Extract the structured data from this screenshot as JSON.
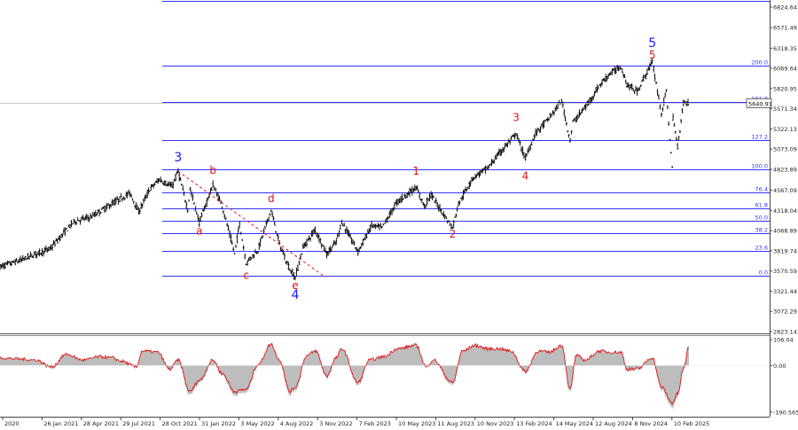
{
  "colors": {
    "fib_line": "#3333ff",
    "price": "#000000",
    "wave_primary": "#1a1aff",
    "wave_minor": "#e01515",
    "osc_hist": "#bdbdbd",
    "osc_line": "#e01515",
    "trendline": "#e01515",
    "axis_text": "#222222",
    "price_tag_bg": "#ffffff"
  },
  "current_price_label": "5640.91",
  "chart_data": [
    {
      "type": "line",
      "title": "",
      "price_axis_ticks": [
        "6824.64",
        "6571.49",
        "6318.35",
        "6069.64",
        "5820.95",
        "5571.34",
        "5322.13",
        "5073.09",
        "4823.89",
        "4567.09",
        "4318.04",
        "4068.89",
        "3819.74",
        "3570.59",
        "3321.44",
        "3072.29",
        "2823.14"
      ],
      "date_ticks": [
        "2020",
        "26 Jan 2021",
        "28 Apr 2021",
        "29 Jul 2021",
        "28 Oct 2021",
        "31 Jan 2022",
        "3 May 2022",
        "4 Aug 2022",
        "3 Nov 2022",
        "7 Feb 2023",
        "10 May 2023",
        "11 Aug 2023",
        "10 Nov 2023",
        "13 Feb 2024",
        "14 May 2024",
        "12 Aug 2024",
        "8 Nov 2024",
        "10 Feb 2025"
      ],
      "fib_levels": [
        {
          "label": "200.0",
          "price": 6100
        },
        {
          "label": "161.8",
          "price": 5660
        },
        {
          "label": "127.2",
          "price": 5190
        },
        {
          "label": "100.0",
          "price": 4820
        },
        {
          "label": "76.4",
          "price": 4540
        },
        {
          "label": "61.8",
          "price": 4340
        },
        {
          "label": "50.0",
          "price": 4190
        },
        {
          "label": "38.2",
          "price": 4040
        },
        {
          "label": "23.6",
          "price": 3820
        },
        {
          "label": "0.0",
          "price": 3510
        }
      ],
      "series": [
        {
          "values": [
            [
              "2020-11-01",
              3620
            ],
            [
              "2020-12-20",
              3700
            ],
            [
              "2021-01-26",
              3780
            ],
            [
              "2021-03-01",
              3840
            ],
            [
              "2021-04-28",
              4180
            ],
            [
              "2021-06-10",
              4240
            ],
            [
              "2021-07-29",
              4400
            ],
            [
              "2021-09-10",
              4530
            ],
            [
              "2021-10-01",
              4300
            ],
            [
              "2021-10-28",
              4580
            ],
            [
              "2021-11-20",
              4700
            ],
            [
              "2021-12-20",
              4610
            ],
            [
              "2022-01-04",
              4800
            ],
            [
              "2022-01-27",
              4330
            ],
            [
              "2022-02-02",
              4580
            ],
            [
              "2022-02-24",
              4170
            ],
            [
              "2022-03-29",
              4630
            ],
            [
              "2022-04-20",
              4380
            ],
            [
              "2022-05-20",
              3780
            ],
            [
              "2022-06-01",
              4150
            ],
            [
              "2022-06-17",
              3670
            ],
            [
              "2022-07-15",
              3830
            ],
            [
              "2022-08-16",
              4320
            ],
            [
              "2022-09-05",
              3900
            ],
            [
              "2022-09-30",
              3590
            ],
            [
              "2022-10-13",
              3490
            ],
            [
              "2022-11-01",
              3860
            ],
            [
              "2022-11-30",
              4080
            ],
            [
              "2022-12-28",
              3780
            ],
            [
              "2023-01-20",
              3930
            ],
            [
              "2023-02-02",
              4180
            ],
            [
              "2023-03-13",
              3810
            ],
            [
              "2023-04-15",
              4130
            ],
            [
              "2023-05-10",
              4100
            ],
            [
              "2023-06-15",
              4420
            ],
            [
              "2023-07-31",
              4600
            ],
            [
              "2023-08-20",
              4370
            ],
            [
              "2023-09-05",
              4510
            ],
            [
              "2023-10-27",
              4100
            ],
            [
              "2023-11-10",
              4400
            ],
            [
              "2023-12-15",
              4720
            ],
            [
              "2024-01-20",
              4840
            ],
            [
              "2024-02-13",
              5000
            ],
            [
              "2024-03-28",
              5260
            ],
            [
              "2024-04-19",
              4960
            ],
            [
              "2024-05-14",
              5270
            ],
            [
              "2024-06-15",
              5450
            ],
            [
              "2024-07-16",
              5670
            ],
            [
              "2024-08-05",
              5180
            ],
            [
              "2024-08-12",
              5400
            ],
            [
              "2024-09-15",
              5620
            ],
            [
              "2024-10-15",
              5860
            ],
            [
              "2024-11-08",
              6000
            ],
            [
              "2024-12-06",
              6090
            ],
            [
              "2024-12-20",
              5870
            ],
            [
              "2025-01-13",
              5780
            ],
            [
              "2025-02-19",
              6150
            ],
            [
              "2025-03-13",
              5520
            ],
            [
              "2025-03-25",
              5780
            ],
            [
              "2025-04-08",
              4830
            ],
            [
              "2025-04-10",
              5460
            ],
            [
              "2025-04-21",
              5100
            ],
            [
              "2025-05-05",
              5650
            ],
            [
              "2025-05-19",
              5640
            ]
          ]
        }
      ],
      "wave_labels": [
        {
          "text": "3",
          "date": "2022-01-04",
          "price": 4920,
          "style": "primary"
        },
        {
          "text": "4",
          "date": "2022-10-13",
          "price": 3230,
          "style": "primary"
        },
        {
          "text": "5",
          "date": "2025-02-19",
          "price": 6330,
          "style": "primary"
        },
        {
          "text": "a",
          "date": "2022-02-24",
          "price": 4020,
          "style": "minor"
        },
        {
          "text": "b",
          "date": "2022-03-29",
          "price": 4770,
          "style": "minor"
        },
        {
          "text": "c",
          "date": "2022-06-17",
          "price": 3475,
          "style": "minor"
        },
        {
          "text": "d",
          "date": "2022-08-16",
          "price": 4420,
          "style": "minor"
        },
        {
          "text": "e",
          "date": "2022-10-13",
          "price": 3350,
          "style": "minor"
        },
        {
          "text": "1",
          "date": "2023-07-31",
          "price": 4760,
          "style": "minor"
        },
        {
          "text": "2",
          "date": "2023-10-27",
          "price": 3980,
          "style": "minor"
        },
        {
          "text": "3",
          "date": "2024-03-28",
          "price": 5420,
          "style": "minor"
        },
        {
          "text": "4",
          "date": "2024-04-19",
          "price": 4700,
          "style": "minor"
        },
        {
          "text": "5",
          "date": "2025-02-19",
          "price": 6190,
          "style": "minor"
        }
      ],
      "trendline": {
        "from": {
          "date": "2022-01-04",
          "price": 4800
        },
        "to": {
          "date": "2022-12-20",
          "price": 3510
        }
      },
      "oscillator": {
        "ticks": [
          "106.04",
          "0.00",
          "-190.565"
        ],
        "ylim": [
          -195,
          110
        ],
        "values": [
          [
            "2020-11-01",
            30
          ],
          [
            "2020-12-15",
            25
          ],
          [
            "2021-01-26",
            20
          ],
          [
            "2021-03-05",
            -10
          ],
          [
            "2021-04-10",
            45
          ],
          [
            "2021-05-20",
            20
          ],
          [
            "2021-07-01",
            35
          ],
          [
            "2021-07-29",
            30
          ],
          [
            "2021-08-20",
            15
          ],
          [
            "2021-09-25",
            -10
          ],
          [
            "2021-10-10",
            60
          ],
          [
            "2021-11-15",
            55
          ],
          [
            "2021-12-15",
            -20
          ],
          [
            "2022-01-04",
            20
          ],
          [
            "2022-02-01",
            -120
          ],
          [
            "2022-02-24",
            -70
          ],
          [
            "2022-03-29",
            20
          ],
          [
            "2022-04-20",
            -40
          ],
          [
            "2022-05-20",
            -120
          ],
          [
            "2022-06-17",
            -110
          ],
          [
            "2022-07-15",
            0
          ],
          [
            "2022-08-16",
            90
          ],
          [
            "2022-09-05",
            20
          ],
          [
            "2022-09-30",
            -120
          ],
          [
            "2022-10-13",
            -100
          ],
          [
            "2022-11-10",
            40
          ],
          [
            "2022-12-01",
            60
          ],
          [
            "2022-12-28",
            -50
          ],
          [
            "2023-01-20",
            30
          ],
          [
            "2023-02-02",
            70
          ],
          [
            "2023-03-13",
            -80
          ],
          [
            "2023-04-10",
            20
          ],
          [
            "2023-05-15",
            35
          ],
          [
            "2023-06-15",
            70
          ],
          [
            "2023-07-31",
            85
          ],
          [
            "2023-08-25",
            -10
          ],
          [
            "2023-09-10",
            20
          ],
          [
            "2023-10-27",
            -80
          ],
          [
            "2023-11-20",
            60
          ],
          [
            "2023-12-20",
            85
          ],
          [
            "2024-01-20",
            70
          ],
          [
            "2024-02-15",
            70
          ],
          [
            "2024-03-15",
            60
          ],
          [
            "2024-04-19",
            -30
          ],
          [
            "2024-05-20",
            60
          ],
          [
            "2024-06-15",
            55
          ],
          [
            "2024-07-16",
            85
          ],
          [
            "2024-08-05",
            -110
          ],
          [
            "2024-08-20",
            40
          ],
          [
            "2024-09-10",
            20
          ],
          [
            "2024-10-15",
            60
          ],
          [
            "2024-11-08",
            55
          ],
          [
            "2024-12-06",
            55
          ],
          [
            "2024-12-20",
            -20
          ],
          [
            "2025-01-13",
            -20
          ],
          [
            "2025-02-19",
            30
          ],
          [
            "2025-03-13",
            -100
          ],
          [
            "2025-04-08",
            -170
          ],
          [
            "2025-04-21",
            -130
          ],
          [
            "2025-05-05",
            -20
          ],
          [
            "2025-05-19",
            90
          ]
        ]
      }
    }
  ]
}
